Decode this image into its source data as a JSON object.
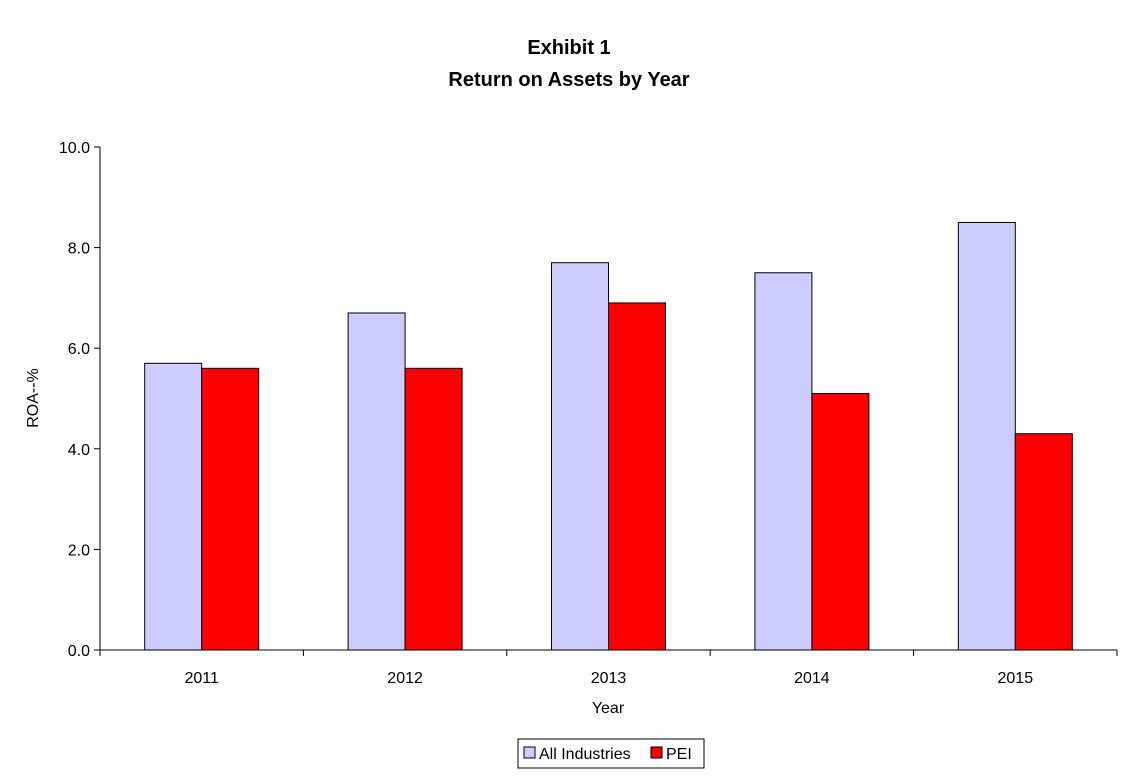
{
  "chart_data": {
    "type": "bar",
    "title": "Exhibit 1",
    "subtitle": "Return on Assets by Year",
    "xlabel": "Year",
    "ylabel": "ROA--%",
    "categories": [
      "2011",
      "2012",
      "2013",
      "2014",
      "2015"
    ],
    "series": [
      {
        "name": "All Industries",
        "color": "#ccccff",
        "values": [
          5.7,
          6.7,
          7.7,
          7.5,
          8.5
        ]
      },
      {
        "name": "PEI",
        "color": "#ff0000",
        "values": [
          5.6,
          5.6,
          6.9,
          5.1,
          4.3
        ]
      }
    ],
    "ylim": [
      0,
      10
    ],
    "yticks": [
      "0.0",
      "2.0",
      "4.0",
      "6.0",
      "8.0",
      "10.0"
    ],
    "grid": false,
    "legend": "bottom"
  }
}
